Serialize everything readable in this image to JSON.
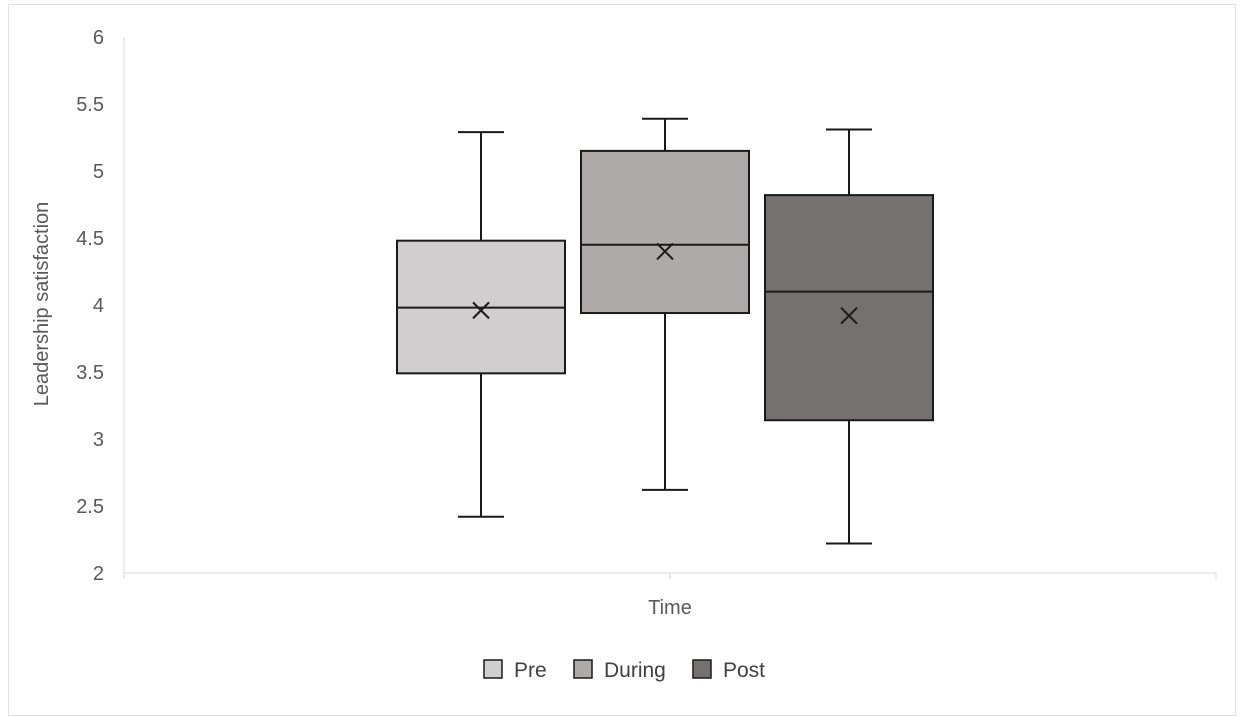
{
  "chart_data": {
    "type": "boxplot",
    "title": "",
    "xlabel": "Time",
    "ylabel": "Leadership satisfaction",
    "ylim": [
      2,
      6
    ],
    "yticks": [
      "2",
      "2.5",
      "3",
      "3.5",
      "4",
      "4.5",
      "5",
      "5.5",
      "6"
    ],
    "grid": false,
    "legend_position": "bottom",
    "series": [
      {
        "name": "Pre",
        "color": "#d0cece",
        "min": 2.42,
        "q1": 3.49,
        "median": 3.98,
        "q3": 4.48,
        "max": 5.29,
        "mean": 3.96
      },
      {
        "name": "During",
        "color": "#aeaaaa",
        "min": 2.62,
        "q1": 3.94,
        "median": 4.45,
        "q3": 5.15,
        "max": 5.39,
        "mean": 4.4
      },
      {
        "name": "Post",
        "color": "#757171",
        "min": 2.22,
        "q1": 3.14,
        "median": 4.1,
        "q3": 4.82,
        "max": 5.31,
        "mean": 3.92
      }
    ]
  }
}
